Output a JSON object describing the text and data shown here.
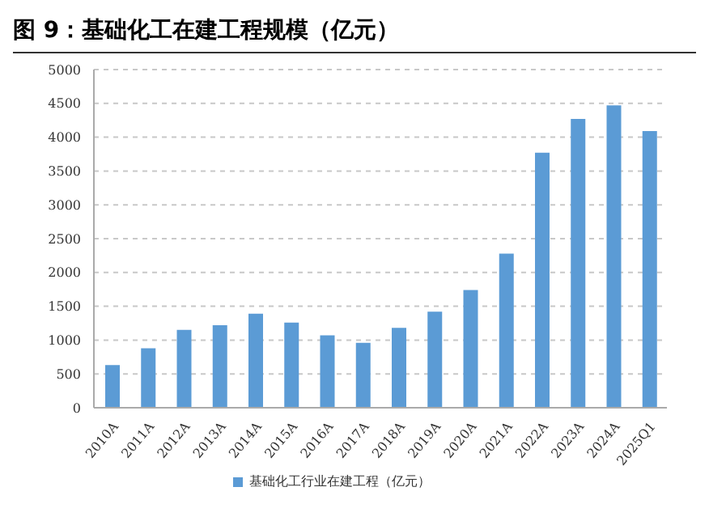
{
  "chart_data": {
    "type": "bar",
    "title": "图 9：基础化工在建工程规模（亿元）",
    "categories": [
      "2010A",
      "2011A",
      "2012A",
      "2013A",
      "2014A",
      "2015A",
      "2016A",
      "2017A",
      "2018A",
      "2019A",
      "2020A",
      "2021A",
      "2022A",
      "2023A",
      "2024A",
      "2025Q1"
    ],
    "series": [
      {
        "name": "基础化工行业在建工程（亿元）",
        "color": "#5b9bd5",
        "values": [
          630,
          880,
          1150,
          1220,
          1390,
          1260,
          1070,
          960,
          1180,
          1420,
          1740,
          2280,
          3770,
          4270,
          4470,
          4090
        ]
      }
    ],
    "ylim": [
      0,
      5000
    ],
    "yticks": [
      0,
      500,
      1000,
      1500,
      2000,
      2500,
      3000,
      3500,
      4000,
      4500,
      5000
    ],
    "grid": "y",
    "legend": "bottom"
  }
}
